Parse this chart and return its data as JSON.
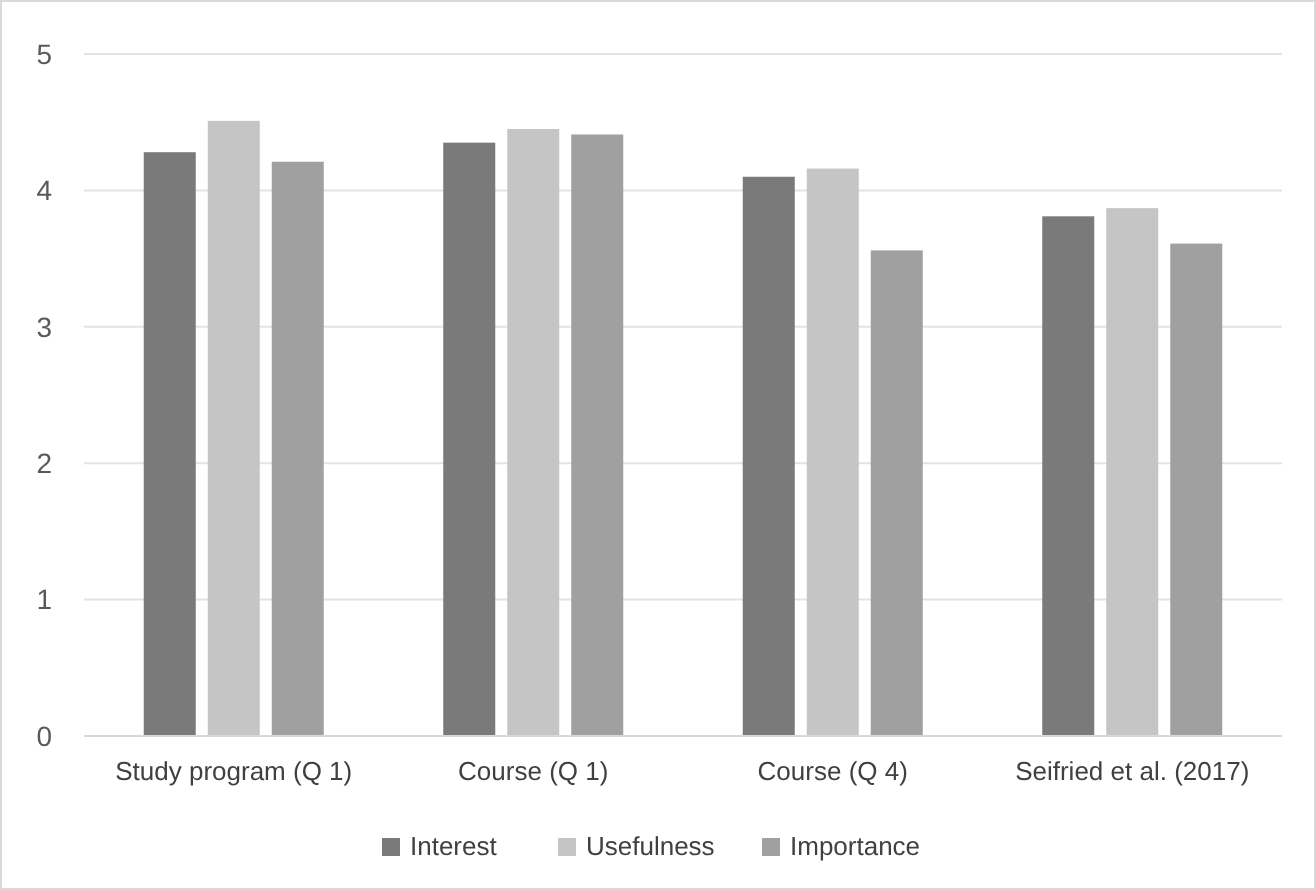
{
  "chart_data": {
    "type": "bar",
    "categories": [
      "Study program (Q 1)",
      "Course (Q 1)",
      "Course (Q 4)",
      "Seifried et al. (2017)"
    ],
    "series": [
      {
        "name": "Interest",
        "color": "#7a7a7a",
        "values": [
          4.28,
          4.35,
          4.1,
          3.81
        ]
      },
      {
        "name": "Usefulness",
        "color": "#c4c5c4",
        "values": [
          4.51,
          4.45,
          4.16,
          3.87
        ]
      },
      {
        "name": "Importance",
        "color": "#a0a0a0",
        "values": [
          4.21,
          4.41,
          3.56,
          3.61
        ]
      }
    ],
    "ylim": [
      0,
      5
    ],
    "yticks": [
      0,
      1,
      2,
      3,
      4,
      5
    ],
    "grid": "y",
    "legend": "bottom"
  }
}
